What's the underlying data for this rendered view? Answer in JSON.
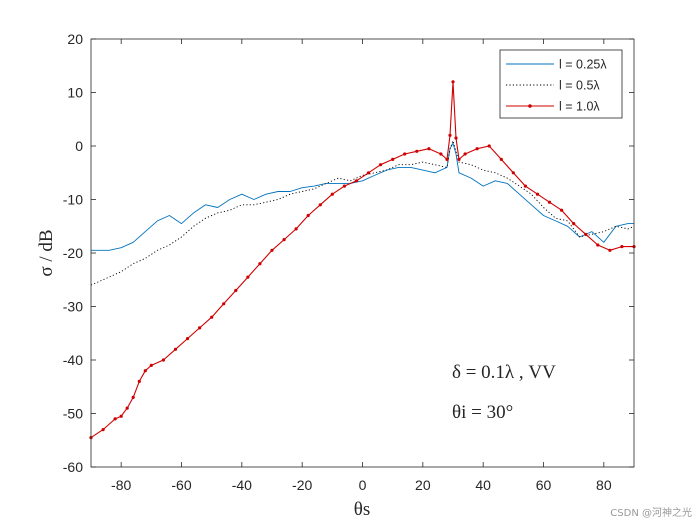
{
  "chart_data": {
    "type": "line",
    "xlabel": "θs",
    "ylabel": "σ / dB",
    "xlim": [
      -90,
      90
    ],
    "ylim": [
      -60,
      20
    ],
    "xticks": [
      -80,
      -60,
      -40,
      -20,
      0,
      20,
      40,
      60,
      80
    ],
    "yticks": [
      -60,
      -50,
      -40,
      -30,
      -20,
      -10,
      0,
      10,
      20
    ],
    "xtick_labels": [
      "-80",
      "-60",
      "-40",
      "-20",
      "0",
      "20",
      "40",
      "60",
      "80"
    ],
    "ytick_labels": [
      "-60",
      "-50",
      "-40",
      "-30",
      "-20",
      "-10",
      "0",
      "10",
      "20"
    ],
    "grid": false,
    "legend_position": "top-right",
    "annotations": [
      "δ = 0.1λ , VV",
      "θi = 30°"
    ],
    "series": [
      {
        "name": "l = 0.25λ",
        "color": "#0072BD",
        "style": "solid",
        "x": [
          -90,
          -84,
          -80,
          -76,
          -72,
          -68,
          -64,
          -60,
          -56,
          -52,
          -48,
          -44,
          -40,
          -36,
          -32,
          -28,
          -24,
          -20,
          -16,
          -12,
          -8,
          -4,
          0,
          4,
          8,
          12,
          16,
          20,
          24,
          28,
          29,
          30,
          31,
          32,
          36,
          40,
          44,
          48,
          52,
          56,
          60,
          64,
          68,
          72,
          76,
          80,
          84,
          88,
          90
        ],
        "y": [
          -19.5,
          -19.5,
          -19,
          -18,
          -16,
          -14,
          -13,
          -14.5,
          -12.5,
          -11,
          -11.5,
          -10,
          -9,
          -10,
          -9,
          -8.5,
          -8.5,
          -7.8,
          -7.5,
          -7,
          -7,
          -7,
          -6.5,
          -5.5,
          -4.5,
          -4,
          -4,
          -4.5,
          -5,
          -4,
          -0.5,
          0.5,
          -1.5,
          -5,
          -6,
          -7.5,
          -6.5,
          -7,
          -9,
          -11,
          -13,
          -14,
          -15,
          -17,
          -16,
          -18,
          -15,
          -14.5,
          -14.5
        ]
      },
      {
        "name": "l = 0.5λ",
        "color": "#000000",
        "style": "dotted",
        "x": [
          -90,
          -84,
          -80,
          -76,
          -72,
          -68,
          -64,
          -60,
          -56,
          -52,
          -48,
          -44,
          -40,
          -36,
          -32,
          -28,
          -24,
          -20,
          -16,
          -12,
          -8,
          -4,
          0,
          4,
          8,
          12,
          16,
          20,
          24,
          28,
          29,
          30,
          31,
          32,
          36,
          40,
          44,
          48,
          52,
          56,
          60,
          64,
          68,
          72,
          76,
          80,
          84,
          88,
          90
        ],
        "y": [
          -26,
          -24.5,
          -23.5,
          -22,
          -21,
          -19.5,
          -18.5,
          -17,
          -15,
          -13.5,
          -12.5,
          -12,
          -11,
          -11,
          -10.5,
          -10,
          -9,
          -8.5,
          -8,
          -7,
          -6,
          -6.5,
          -5.5,
          -5,
          -4.5,
          -3.5,
          -3.5,
          -3,
          -3.5,
          -4,
          -0.5,
          1,
          -1,
          -3,
          -3.5,
          -4.5,
          -5,
          -6,
          -7.5,
          -9,
          -11.5,
          -13.5,
          -14,
          -17,
          -16.5,
          -16,
          -15,
          -15.5,
          -15
        ]
      },
      {
        "name": "l = 1.0λ",
        "color": "#D00000",
        "style": "solid-markers",
        "x": [
          -90,
          -86,
          -82,
          -80,
          -78,
          -76,
          -74,
          -72,
          -70,
          -66,
          -62,
          -58,
          -54,
          -50,
          -46,
          -42,
          -38,
          -34,
          -30,
          -26,
          -22,
          -18,
          -14,
          -10,
          -6,
          -2,
          2,
          6,
          10,
          14,
          18,
          22,
          26,
          28,
          29,
          30,
          31,
          32,
          34,
          38,
          42,
          46,
          50,
          54,
          58,
          62,
          66,
          70,
          74,
          78,
          82,
          86,
          90
        ],
        "y": [
          -54.5,
          -53,
          -51,
          -50.5,
          -49,
          -47,
          -44,
          -42,
          -41,
          -40,
          -38,
          -36,
          -34,
          -32,
          -29.5,
          -27,
          -24.5,
          -22,
          -19.5,
          -17.5,
          -15.5,
          -13,
          -11,
          -9,
          -7.5,
          -6.5,
          -5,
          -3.5,
          -2.5,
          -1.5,
          -1,
          -0.5,
          -1.5,
          -2.5,
          2,
          12,
          1.5,
          -2.5,
          -1.5,
          -0.5,
          0,
          -2.5,
          -5,
          -7.5,
          -9,
          -10.5,
          -12,
          -14.5,
          -16.5,
          -18.5,
          -19.5,
          -18.8,
          -18.8
        ]
      }
    ]
  },
  "watermark": "CSDN @河神之光"
}
